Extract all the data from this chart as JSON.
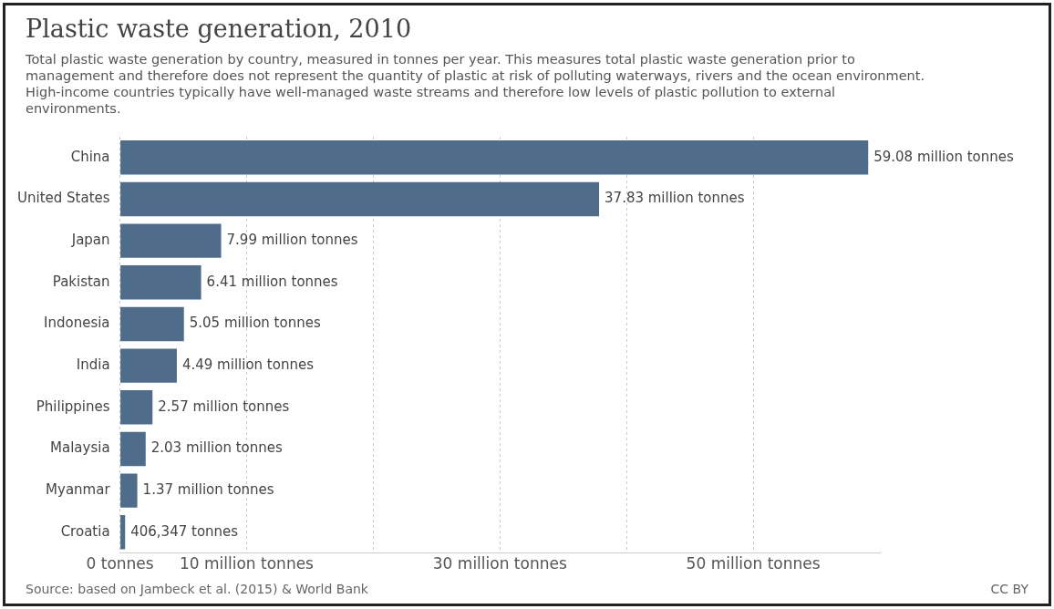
{
  "chart_data": {
    "type": "bar",
    "orientation": "horizontal",
    "title": "Plastic waste generation, 2010",
    "subtitle": "Total plastic waste generation by country, measured in tonnes per year. This measures total plastic waste generation prior to management and therefore does not represent the quantity of plastic at risk of polluting waterways, rivers and the ocean environment. High-income countries typically have well-managed waste streams and therefore low levels of plastic pollution to external environments.",
    "categories": [
      "China",
      "United States",
      "Japan",
      "Pakistan",
      "Indonesia",
      "India",
      "Philippines",
      "Malaysia",
      "Myanmar",
      "Croatia"
    ],
    "values": [
      59080000,
      37830000,
      7990000,
      6410000,
      5050000,
      4490000,
      2570000,
      2030000,
      1370000,
      406347
    ],
    "value_labels": [
      "59.08 million tonnes",
      "37.83 million tonnes",
      "7.99 million tonnes",
      "6.41 million tonnes",
      "5.05 million tonnes",
      "4.49 million tonnes",
      "2.57 million tonnes",
      "2.03 million tonnes",
      "1.37 million tonnes",
      "406,347 tonnes"
    ],
    "color": "#4f6d8a",
    "xlim": [
      0,
      60000000
    ],
    "xticks": [
      {
        "value": 0,
        "label": "0 tonnes"
      },
      {
        "value": 10000000,
        "label": "10 million tonnes"
      },
      {
        "value": 20000000,
        "label": null
      },
      {
        "value": 30000000,
        "label": "30 million tonnes"
      },
      {
        "value": 40000000,
        "label": null
      },
      {
        "value": 50000000,
        "label": "50 million tonnes"
      }
    ],
    "grid": "x",
    "annotations": [
      "Source: based on Jambeck et al. (2015) & World Bank",
      "CC BY"
    ]
  }
}
